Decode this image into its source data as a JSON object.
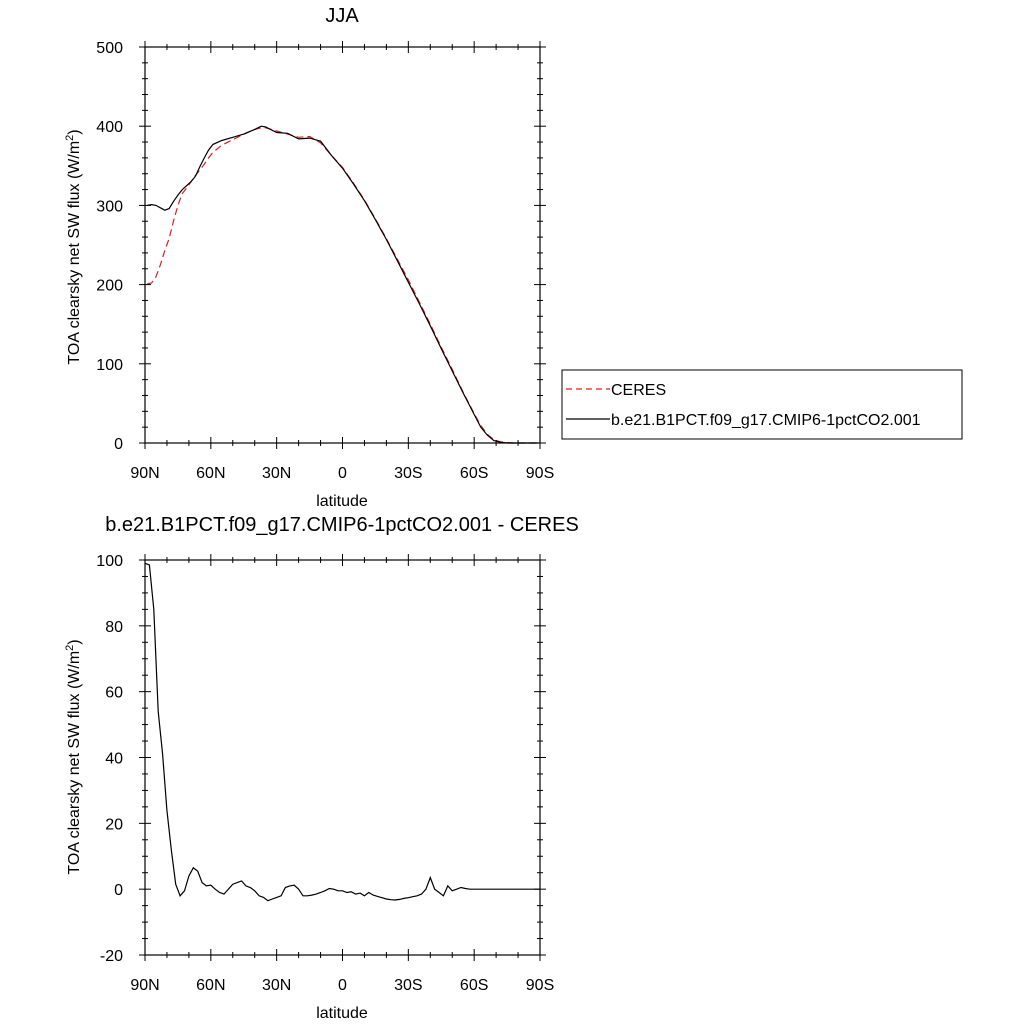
{
  "chart_data": [
    {
      "type": "line",
      "title": "JJA",
      "xlabel": "latitude",
      "ylabel": "TOA clearsky net SW flux (W/m",
      "ylabel_sup": "2",
      "ylabel_close": ")",
      "xlim": [
        90,
        -90
      ],
      "ylim": [
        0,
        500
      ],
      "x_ticks": [
        90,
        60,
        30,
        0,
        -30,
        -60,
        -90
      ],
      "x_tick_labels": [
        "90N",
        "60N",
        "30N",
        "0",
        "30S",
        "60S",
        "90S"
      ],
      "y_ticks": [
        0,
        100,
        200,
        300,
        400,
        500
      ],
      "y_tick_labels": [
        "0",
        "100",
        "200",
        "300",
        "400",
        "500"
      ],
      "legend_position": "right",
      "series": [
        {
          "name": "CERES",
          "color": "#e41a1c",
          "dash": "dashed",
          "x": [
            89,
            87,
            85,
            83,
            81,
            79,
            77,
            75,
            73,
            71,
            69,
            67,
            65,
            63,
            61,
            59,
            55,
            50,
            45,
            40,
            37,
            35,
            30,
            25,
            20,
            15,
            10,
            5,
            0,
            -5,
            -10,
            -15,
            -20,
            -25,
            -30,
            -35,
            -40,
            -45,
            -50,
            -55,
            -60,
            -63,
            -66,
            -69,
            -72,
            -75,
            -78,
            -81,
            -84,
            -87,
            -89
          ],
          "y": [
            201,
            202,
            210,
            225,
            243,
            258,
            280,
            300,
            315,
            322,
            330,
            338,
            345,
            352,
            360,
            367,
            376,
            383,
            390,
            396,
            398,
            398,
            394,
            390,
            386,
            387,
            379,
            363,
            348,
            328,
            307,
            283,
            258,
            232,
            206,
            178,
            150,
            121,
            93,
            64,
            37,
            22,
            11,
            4,
            1.5,
            0.5,
            0,
            0,
            0,
            0,
            0
          ]
        },
        {
          "name": "b.e21.B1PCT.f09_g17.CMIP6-1pctCO2.001",
          "color": "#000000",
          "dash": "solid",
          "x": [
            89,
            87,
            85,
            83,
            81,
            79,
            77,
            75,
            73,
            71,
            69,
            67,
            65,
            63,
            61,
            59,
            55,
            50,
            45,
            40,
            37,
            35,
            30,
            25,
            20,
            15,
            10,
            5,
            0,
            -5,
            -10,
            -15,
            -20,
            -25,
            -30,
            -35,
            -40,
            -45,
            -50,
            -55,
            -60,
            -63,
            -66,
            -69,
            -72,
            -75,
            -78,
            -81,
            -84,
            -87,
            -89
          ],
          "y": [
            300,
            301,
            300,
            297,
            294,
            296,
            305,
            313,
            320,
            325,
            330,
            337,
            349,
            360,
            370,
            377,
            382,
            386,
            390,
            396,
            400,
            399,
            392,
            391,
            384,
            385,
            381,
            363,
            347,
            327,
            306,
            282,
            257,
            230,
            203,
            176,
            148,
            119,
            91,
            63,
            36,
            20,
            10,
            3,
            1,
            0,
            0,
            0,
            0,
            0,
            0
          ]
        }
      ]
    },
    {
      "type": "line",
      "title": "b.e21.B1PCT.f09_g17.CMIP6-1pctCO2.001 - CERES",
      "xlabel": "latitude",
      "ylabel": "TOA clearsky net SW flux (W/m",
      "ylabel_sup": "2",
      "ylabel_close": ")",
      "xlim": [
        90,
        -90
      ],
      "ylim": [
        -20,
        100
      ],
      "x_ticks": [
        90,
        60,
        30,
        0,
        -30,
        -60,
        -90
      ],
      "x_tick_labels": [
        "90N",
        "60N",
        "30N",
        "0",
        "30S",
        "60S",
        "90S"
      ],
      "y_ticks": [
        -20,
        0,
        20,
        40,
        60,
        80,
        100
      ],
      "y_tick_labels": [
        "-20",
        "0",
        "20",
        "40",
        "60",
        "80",
        "100"
      ],
      "series": [
        {
          "color": "#000000",
          "dash": "solid",
          "x": [
            90,
            88,
            86,
            84,
            82,
            80,
            78,
            76,
            74,
            72,
            70,
            68,
            66,
            64,
            62,
            60,
            58,
            56,
            54,
            50,
            46,
            44,
            42,
            40,
            38,
            36,
            34,
            32,
            30,
            28,
            26,
            24,
            22,
            20,
            18,
            16,
            14,
            12,
            10,
            8,
            6,
            4,
            2,
            0,
            -2,
            -4,
            -6,
            -8,
            -10,
            -12,
            -14,
            -16,
            -18,
            -20,
            -22,
            -24,
            -26,
            -28,
            -30,
            -32,
            -34,
            -36,
            -38,
            -40,
            -42,
            -44,
            -46,
            -48,
            -50,
            -52,
            -54,
            -56,
            -58,
            -60,
            -62,
            -64,
            -66,
            -68,
            -70,
            -72,
            -74,
            -76,
            -80,
            -84,
            -88,
            -90
          ],
          "y": [
            99,
            98.5,
            85,
            54,
            41,
            24,
            12,
            1.5,
            -2,
            -0.5,
            4,
            6.5,
            5.5,
            2,
            1,
            1.2,
            0,
            -1,
            -1.5,
            1.5,
            2.5,
            1,
            0.5,
            -0.5,
            -2,
            -2.5,
            -3.5,
            -3,
            -2.5,
            -2,
            0.5,
            1,
            1.2,
            0,
            -2,
            -2,
            -1.8,
            -1.5,
            -1,
            -0.5,
            0.2,
            0,
            -0.5,
            -0.5,
            -1,
            -0.8,
            -1.5,
            -1.2,
            -2,
            -1,
            -1.8,
            -2.2,
            -2.6,
            -3,
            -3.2,
            -3.3,
            -3.1,
            -2.8,
            -2.6,
            -2.3,
            -2,
            -1.5,
            0,
            3.5,
            0,
            -1,
            -2,
            1,
            -0.5,
            0,
            0.5,
            0.2,
            0,
            0,
            0,
            0,
            0,
            0,
            0,
            0,
            0,
            0,
            0,
            0,
            0,
            0
          ]
        }
      ]
    }
  ]
}
